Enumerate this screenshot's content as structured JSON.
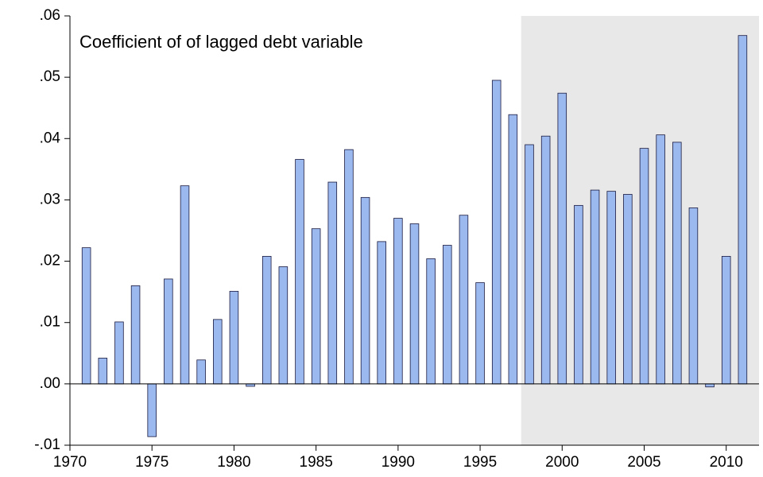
{
  "chart_data": {
    "type": "bar",
    "title": "Coefficient of of lagged debt variable",
    "x": [
      1971,
      1972,
      1973,
      1974,
      1975,
      1976,
      1977,
      1978,
      1979,
      1980,
      1981,
      1982,
      1983,
      1984,
      1985,
      1986,
      1987,
      1988,
      1989,
      1990,
      1991,
      1992,
      1993,
      1994,
      1995,
      1996,
      1997,
      1998,
      1999,
      2000,
      2001,
      2002,
      2003,
      2004,
      2005,
      2006,
      2007,
      2008,
      2009,
      2010,
      2011
    ],
    "values": [
      0.0222,
      0.0042,
      0.0101,
      0.016,
      -0.0086,
      0.0171,
      0.0323,
      0.0039,
      0.0105,
      0.0151,
      -0.0004,
      0.0208,
      0.0191,
      0.0366,
      0.0253,
      0.0329,
      0.0382,
      0.0304,
      0.0232,
      0.027,
      0.0261,
      0.0204,
      0.0226,
      0.0275,
      0.0165,
      0.0495,
      0.0439,
      0.039,
      0.0404,
      0.0474,
      0.0291,
      0.0316,
      0.0314,
      0.0309,
      0.0384,
      0.0406,
      0.0394,
      0.0287,
      -0.0005,
      0.0208,
      0.0568
    ],
    "color": "#9bb9ef",
    "shaded_range": [
      1997.5,
      2012
    ],
    "shade_color": "#e8e8e8",
    "xlim": [
      1970,
      2012
    ],
    "xticks": [
      1970,
      1975,
      1980,
      1985,
      1990,
      1995,
      2000,
      2005,
      2010
    ],
    "ylim": [
      -0.01,
      0.06
    ],
    "yticks": [
      {
        "value": -0.01,
        "label": "-.01"
      },
      {
        "value": 0,
        "label": ".00"
      },
      {
        "value": 0.01,
        "label": ".01"
      },
      {
        "value": 0.02,
        "label": ".02"
      },
      {
        "value": 0.03,
        "label": ".03"
      },
      {
        "value": 0.04,
        "label": ".04"
      },
      {
        "value": 0.05,
        "label": ".05"
      },
      {
        "value": 0.06,
        "label": ".06"
      }
    ]
  }
}
